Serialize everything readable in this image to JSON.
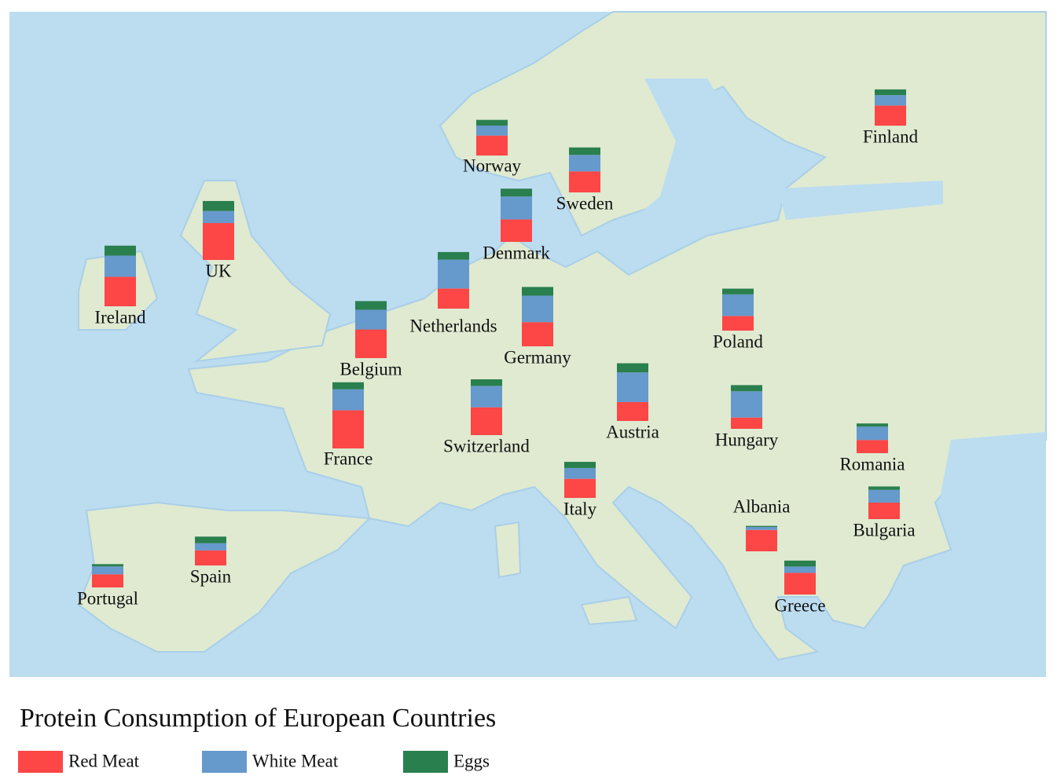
{
  "chart_data": {
    "type": "stacked-bar-map",
    "title": "Protein Consumption of European Countries",
    "categories": [
      "Finland",
      "Norway",
      "Sweden",
      "Denmark",
      "UK",
      "Ireland",
      "Netherlands",
      "Germany",
      "Belgium",
      "Poland",
      "France",
      "Switzerland",
      "Austria",
      "Hungary",
      "Romania",
      "Italy",
      "Albania",
      "Bulgaria",
      "Greece",
      "Spain",
      "Portugal"
    ],
    "series": [
      {
        "name": "Red Meat",
        "color": "#fd4646",
        "values": [
          9.5,
          9.4,
          9.9,
          10.6,
          17.4,
          13.9,
          9.5,
          11.4,
          13.5,
          6.9,
          18.0,
          13.1,
          8.9,
          5.3,
          6.2,
          9.0,
          10.1,
          7.8,
          10.2,
          7.1,
          6.2
        ]
      },
      {
        "name": "White Meat",
        "color": "#6699cc",
        "values": [
          4.9,
          4.7,
          7.8,
          10.8,
          5.7,
          10.0,
          13.6,
          12.5,
          9.3,
          10.2,
          9.9,
          10.1,
          14.0,
          12.4,
          6.3,
          5.1,
          1.4,
          6.0,
          3.0,
          3.4,
          3.7
        ]
      },
      {
        "name": "Eggs",
        "color": "#2a7f4e",
        "values": [
          2.7,
          2.7,
          3.5,
          3.7,
          4.7,
          4.7,
          3.6,
          4.1,
          4.1,
          2.7,
          3.3,
          3.1,
          4.3,
          2.9,
          1.5,
          2.9,
          0.5,
          1.6,
          2.8,
          3.1,
          1.1
        ]
      }
    ]
  }
}
